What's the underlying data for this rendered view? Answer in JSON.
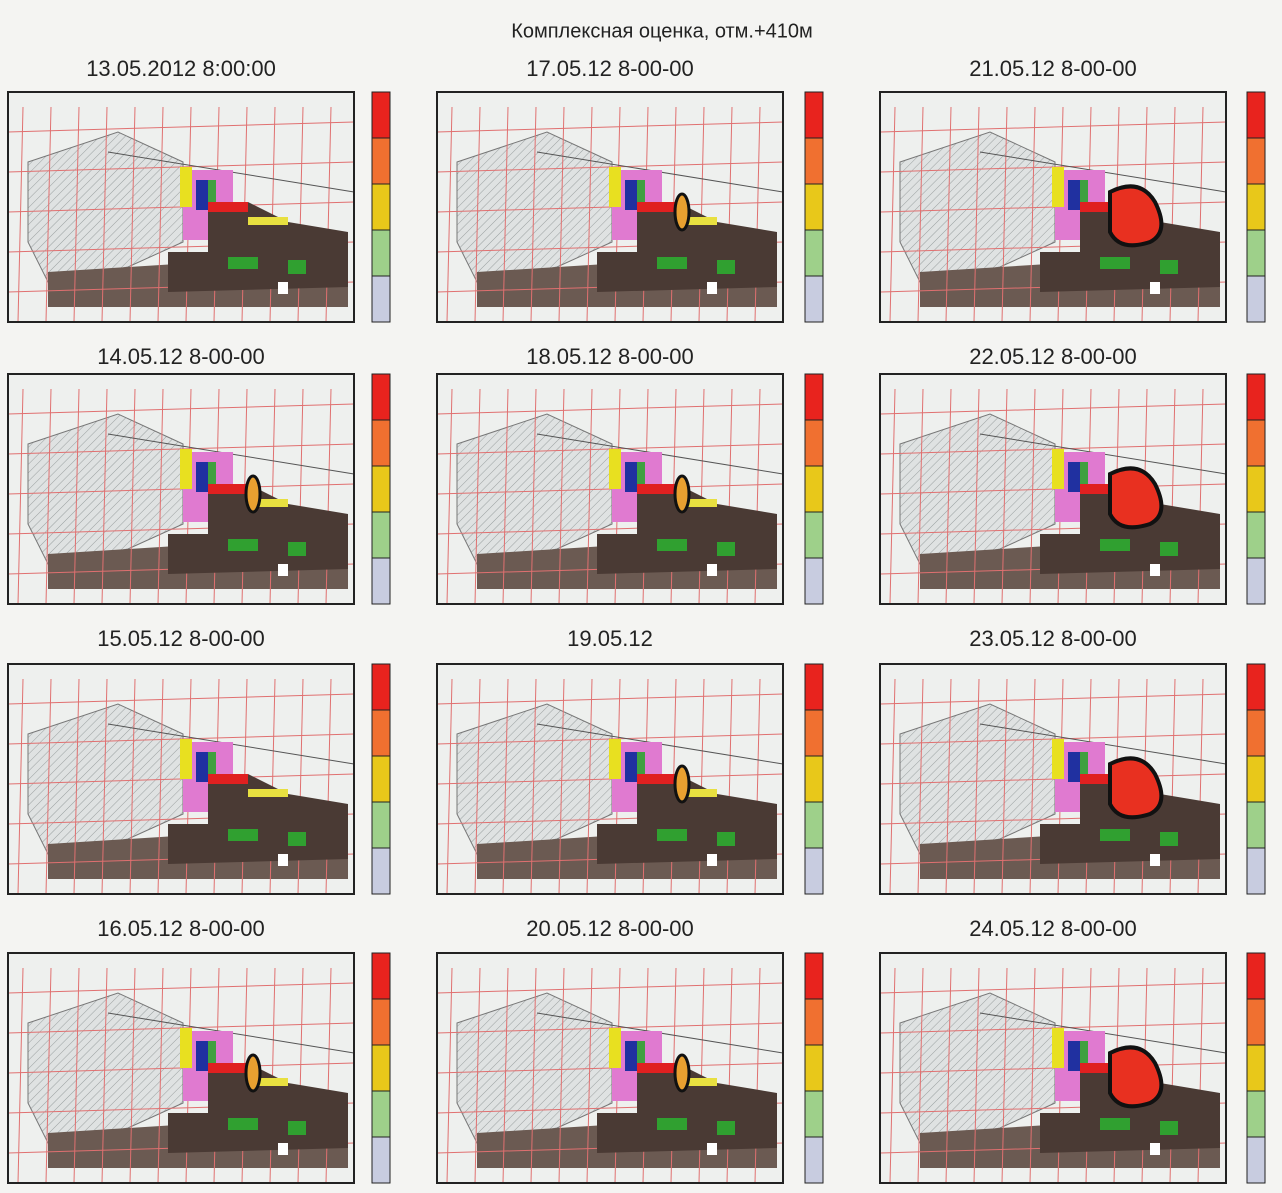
{
  "title": "Комплексная оценка, отм.+410м",
  "panels": [
    {
      "title": "13.05.2012 8:00:00"
    },
    {
      "title": "17.05.12 8-00-00"
    },
    {
      "title": "21.05.12 8-00-00"
    },
    {
      "title": "14.05.12 8-00-00"
    },
    {
      "title": "18.05.12 8-00-00"
    },
    {
      "title": "22.05.12 8-00-00"
    },
    {
      "title": "15.05.12 8-00-00"
    },
    {
      "title": "19.05.12"
    },
    {
      "title": "23.05.12 8-00-00"
    },
    {
      "title": "16.05.12 8-00-00"
    },
    {
      "title": "20.05.12 8-00-00"
    },
    {
      "title": "24.05.12 8-00-00"
    }
  ]
}
